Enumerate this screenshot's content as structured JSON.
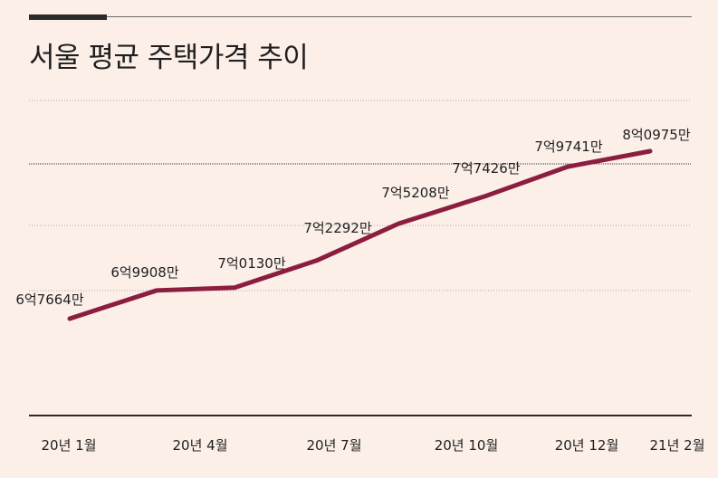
{
  "title": "서울 평균 주택가격 추이",
  "chart_data": {
    "type": "line",
    "title": "서울 평균 주택가격 추이",
    "xlabel": "",
    "ylabel": "",
    "x_ticks": [
      "20년 1월",
      "20년 4월",
      "20년 7월",
      "20년 10월",
      "20년 12월",
      "21년 2월"
    ],
    "series": [
      {
        "labels": [
          "6억7664만",
          "6억9908만",
          "7억0130만",
          "7억2292만",
          "7억5208만",
          "7억7426만",
          "7억9741만",
          "8억0975만"
        ],
        "values": [
          67664,
          69908,
          70130,
          72292,
          75208,
          77426,
          79741,
          80975
        ]
      }
    ],
    "unit": "만원",
    "grid": true,
    "colors": {
      "line": "#8b1e3f",
      "background": "#fbefe8"
    }
  }
}
